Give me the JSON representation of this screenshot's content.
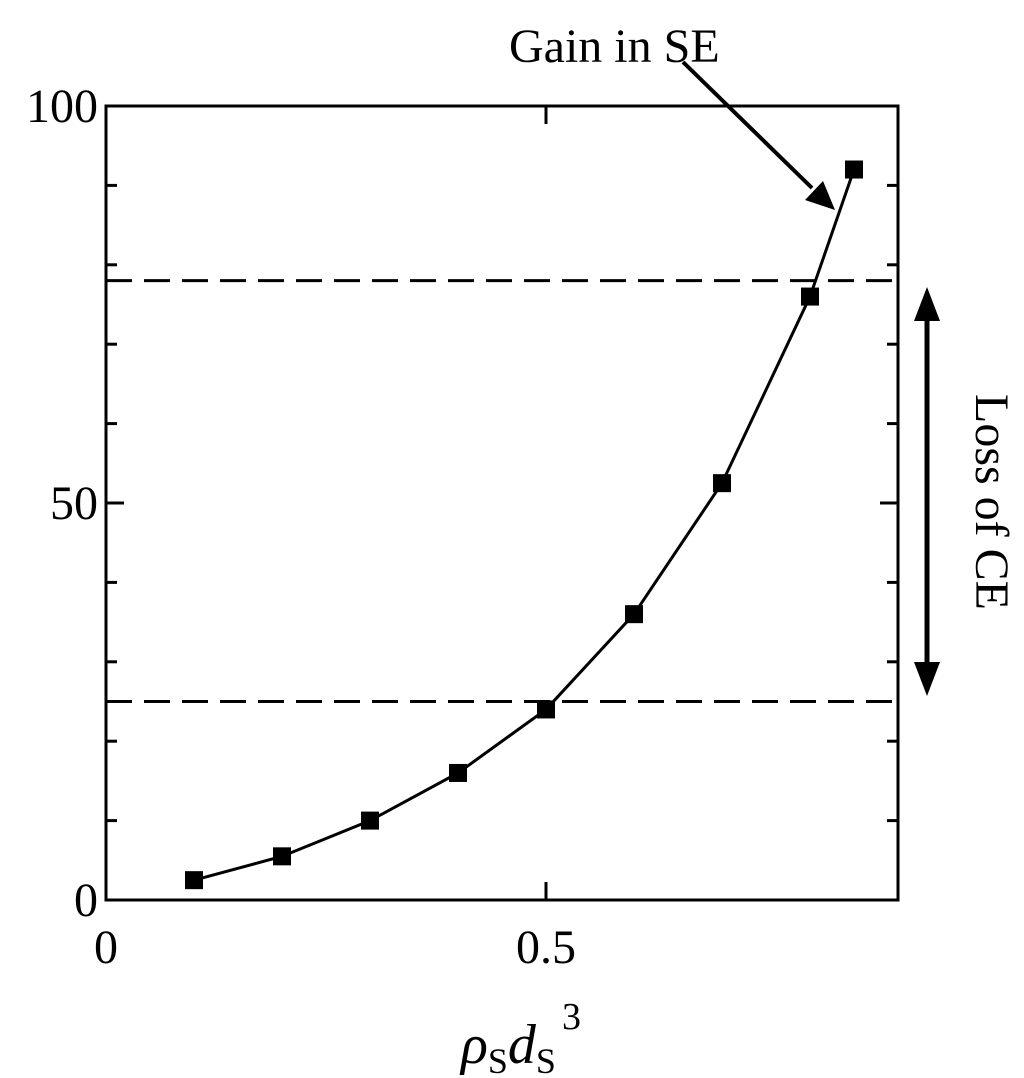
{
  "chart_data": {
    "type": "line",
    "title": "",
    "ylabel": "",
    "xlabel": {
      "rho": "ρ",
      "rho_sub": "S",
      "d": "d",
      "d_sub": "S",
      "power": "3"
    },
    "xlim": [
      0,
      0.9
    ],
    "ylim": [
      0,
      100
    ],
    "x_ticks": [
      {
        "value": 0,
        "label": "0"
      },
      {
        "value": 0.5,
        "label": "0.5"
      }
    ],
    "x_minor_ticks": [],
    "y_ticks": [
      {
        "value": 0,
        "label": "0"
      },
      {
        "value": 50,
        "label": "50"
      },
      {
        "value": 100,
        "label": "100"
      }
    ],
    "y_minor_ticks": [
      10,
      20,
      30,
      40,
      60,
      70,
      80,
      90
    ],
    "grid": false,
    "series": [
      {
        "marker": "square",
        "color": "#000000",
        "x": [
          0.1,
          0.2,
          0.3,
          0.4,
          0.5,
          0.6,
          0.7,
          0.8,
          0.85
        ],
        "y": [
          2.5,
          5.5,
          10,
          16,
          24,
          36,
          52.5,
          76,
          92
        ]
      }
    ],
    "reference_lines": [
      {
        "axis": "y",
        "value": 78,
        "style": "dashed"
      },
      {
        "axis": "y",
        "value": 25,
        "style": "dashed"
      }
    ],
    "annotations": [
      {
        "text": "Gain in SE",
        "arrow_to": {
          "x": 0.833,
          "y": 87
        }
      },
      {
        "text": "Loss of CE",
        "orientation": "vertical",
        "double_arrow_span": [
          78,
          25
        ]
      }
    ]
  }
}
